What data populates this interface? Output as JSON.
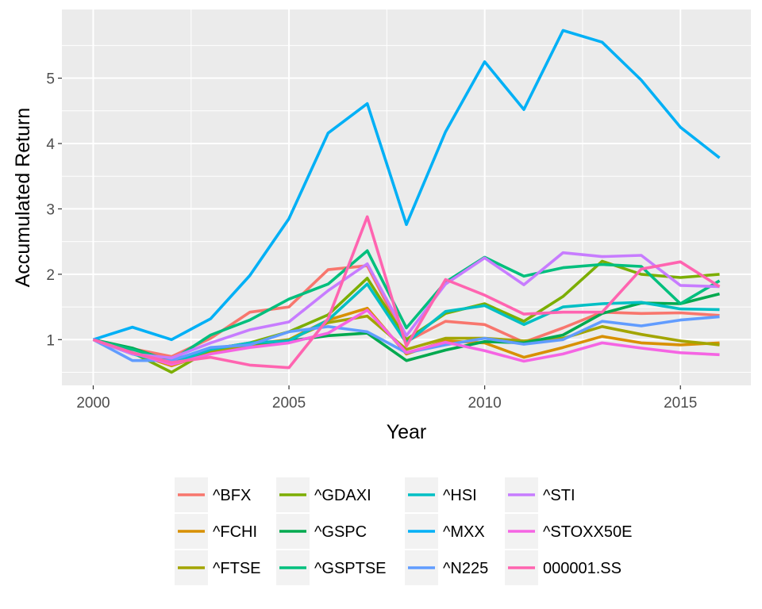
{
  "chart_data": {
    "type": "line",
    "title": "",
    "xlabel": "Year",
    "ylabel": "Accumulated Return",
    "xlim": [
      1999.2,
      2016.8
    ],
    "ylim": [
      0.3,
      6.05
    ],
    "x_ticks": [
      2000,
      2005,
      2010,
      2015
    ],
    "y_ticks": [
      1,
      2,
      3,
      4,
      5
    ],
    "grid": true,
    "legend_position": "bottom",
    "x": [
      2000,
      2001,
      2002,
      2003,
      2004,
      2005,
      2006,
      2007,
      2008,
      2009,
      2010,
      2011,
      2012,
      2013,
      2014,
      2015,
      2016
    ],
    "series": [
      {
        "name": "^BFX",
        "color": "#F8766D",
        "values": [
          1.0,
          0.86,
          0.74,
          1.02,
          1.42,
          1.5,
          2.07,
          2.13,
          0.97,
          1.28,
          1.23,
          0.96,
          1.18,
          1.42,
          1.4,
          1.41,
          1.37
        ]
      },
      {
        "name": "^FCHI",
        "color": "#D89000",
        "values": [
          1.0,
          0.8,
          0.6,
          0.8,
          0.93,
          1.0,
          1.3,
          1.48,
          0.78,
          0.98,
          0.95,
          0.73,
          0.88,
          1.05,
          0.95,
          0.92,
          0.95
        ]
      },
      {
        "name": "^FTSE",
        "color": "#A3A500",
        "values": [
          1.0,
          0.86,
          0.66,
          0.83,
          0.89,
          1.0,
          1.26,
          1.36,
          0.85,
          1.02,
          1.02,
          0.98,
          1.02,
          1.2,
          1.08,
          0.98,
          0.92
        ]
      },
      {
        "name": "^GDAXI",
        "color": "#7CAE00",
        "values": [
          1.0,
          0.8,
          0.5,
          0.85,
          0.95,
          1.12,
          1.38,
          1.94,
          1.0,
          1.4,
          1.55,
          1.28,
          1.66,
          2.2,
          2.0,
          1.95,
          2.0
        ]
      },
      {
        "name": "^GSPC",
        "color": "#00A94F",
        "values": [
          1.0,
          0.87,
          0.66,
          0.86,
          0.94,
          0.98,
          1.06,
          1.1,
          0.68,
          0.84,
          0.97,
          0.95,
          1.07,
          1.4,
          1.56,
          1.55,
          1.7
        ]
      },
      {
        "name": "^GSPTSE",
        "color": "#00BF7D",
        "values": [
          1.0,
          0.85,
          0.68,
          1.07,
          1.3,
          1.62,
          1.85,
          2.36,
          1.18,
          1.88,
          2.26,
          1.97,
          2.1,
          2.15,
          2.12,
          1.55,
          1.9
        ]
      },
      {
        "name": "^HSI",
        "color": "#00BFC4",
        "values": [
          1.0,
          0.78,
          0.63,
          0.85,
          0.95,
          0.98,
          1.3,
          1.85,
          0.95,
          1.43,
          1.52,
          1.23,
          1.5,
          1.55,
          1.57,
          1.47,
          1.46
        ]
      },
      {
        "name": "^MXX",
        "color": "#00B0F6",
        "values": [
          1.0,
          1.19,
          1.0,
          1.32,
          1.98,
          2.85,
          4.16,
          4.61,
          2.76,
          4.18,
          5.25,
          4.52,
          5.73,
          5.55,
          4.97,
          4.25,
          3.78
        ]
      },
      {
        "name": "^N225",
        "color": "#619CFF",
        "values": [
          1.0,
          0.68,
          0.68,
          0.88,
          0.92,
          1.12,
          1.2,
          1.12,
          0.8,
          0.92,
          1.02,
          0.93,
          1.0,
          1.28,
          1.21,
          1.3,
          1.35
        ]
      },
      {
        "name": "^STI",
        "color": "#C77CFF",
        "values": [
          1.0,
          0.78,
          0.72,
          0.95,
          1.15,
          1.27,
          1.75,
          2.16,
          1.06,
          1.85,
          2.25,
          1.84,
          2.33,
          2.27,
          2.29,
          1.83,
          1.81
        ]
      },
      {
        "name": "^STOXX50E",
        "color": "#F564E3",
        "values": [
          1.0,
          0.8,
          0.62,
          0.78,
          0.88,
          0.95,
          1.1,
          1.45,
          0.8,
          0.96,
          0.83,
          0.67,
          0.78,
          0.95,
          0.87,
          0.8,
          0.77
        ]
      },
      {
        "name": "000001.SS",
        "color": "#FF64B0",
        "values": [
          1.0,
          0.8,
          0.65,
          0.73,
          0.61,
          0.57,
          1.32,
          2.88,
          0.9,
          1.92,
          1.68,
          1.39,
          1.42,
          1.42,
          2.08,
          2.19,
          1.81
        ]
      }
    ]
  }
}
